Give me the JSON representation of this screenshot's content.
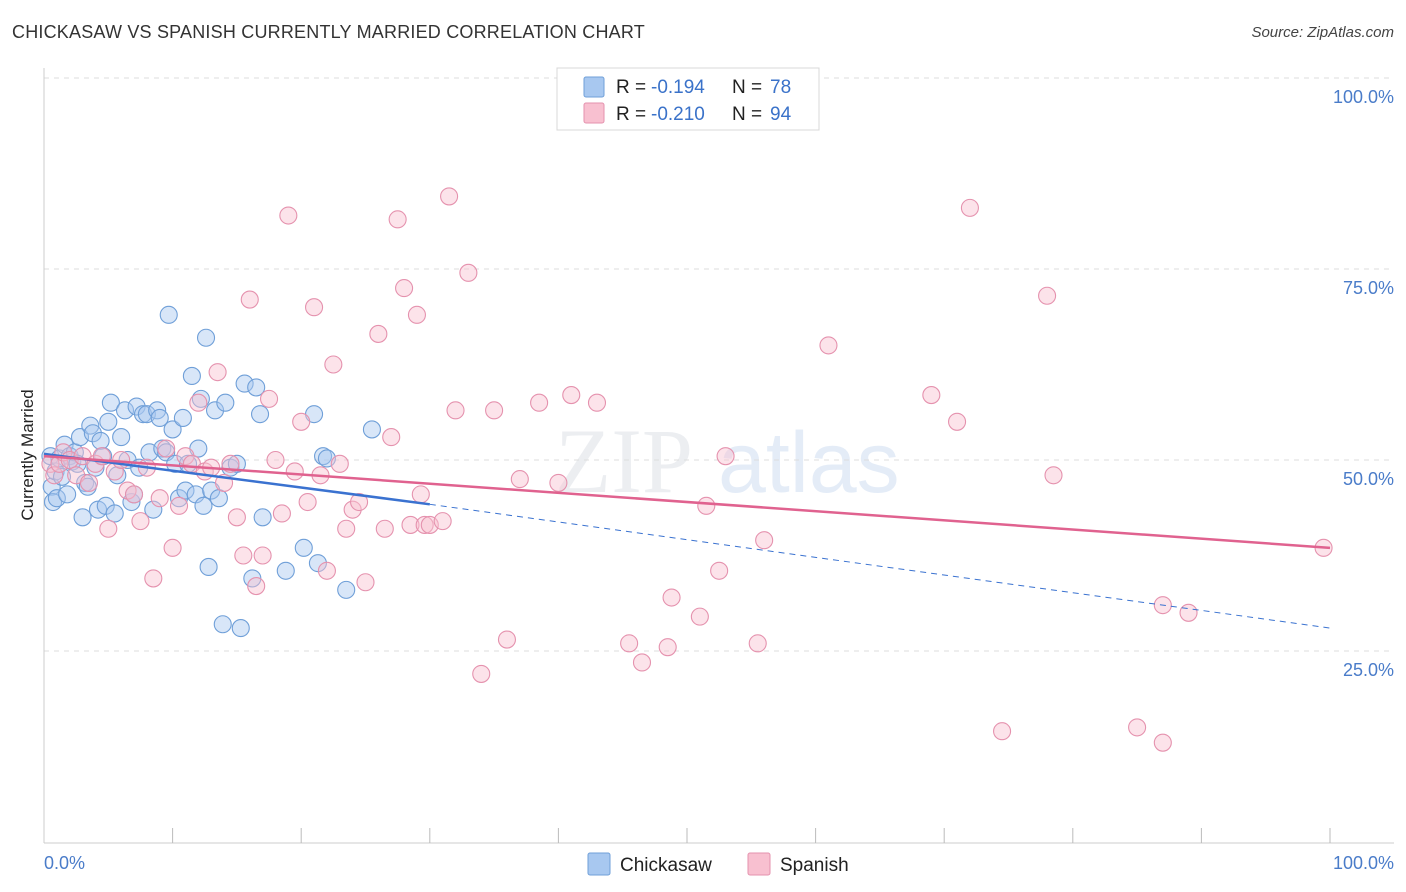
{
  "header": {
    "title": "CHICKASAW VS SPANISH CURRENTLY MARRIED CORRELATION CHART",
    "source": "Source: ZipAtlas.com"
  },
  "watermark": {
    "zip": "ZIP",
    "atlas": "atlas"
  },
  "legend_top": {
    "rows": [
      {
        "r_label": "R =",
        "r_value": "-0.194",
        "n_label": "N =",
        "n_value": "78",
        "color": "#a8c8f0",
        "stroke": "#6f9fd8"
      },
      {
        "r_label": "R =",
        "r_value": "-0.210",
        "n_label": "N =",
        "n_value": "94",
        "color": "#f8c0d0",
        "stroke": "#e592ae"
      }
    ]
  },
  "legend_bottom": {
    "items": [
      {
        "label": "Chickasaw",
        "color": "#a8c8f0",
        "stroke": "#6f9fd8"
      },
      {
        "label": "Spanish",
        "color": "#f8c0d0",
        "stroke": "#e592ae"
      }
    ]
  },
  "chart_data": {
    "type": "scatter",
    "title": "CHICKASAW VS SPANISH CURRENTLY MARRIED CORRELATION CHART",
    "xlabel": "",
    "ylabel": "Currently Married",
    "xlim": [
      0,
      100
    ],
    "ylim": [
      0,
      102
    ],
    "x_tick_labels": {
      "left": "0.0%",
      "right": "100.0%"
    },
    "y_ticks": [
      {
        "value": 25,
        "label": "25.0%"
      },
      {
        "value": 50,
        "label": "50.0%"
      },
      {
        "value": 75,
        "label": "75.0%"
      },
      {
        "value": 100,
        "label": "100.0%"
      }
    ],
    "grid": true,
    "series": [
      {
        "name": "Chickasaw",
        "color": "#a8c8f0",
        "stroke": "#6f9fd8",
        "line_color": "#3a72d0",
        "r": -0.194,
        "n": 78,
        "trend": {
          "x0": 0,
          "y0": 50.8,
          "x1": 30,
          "y1": 44.2,
          "dash_to_x": 100,
          "dash_to_y": 28.0
        },
        "points": [
          [
            0.5,
            50.5
          ],
          [
            0.6,
            46.5
          ],
          [
            0.7,
            44.5
          ],
          [
            0.9,
            48.5
          ],
          [
            1.0,
            45.0
          ],
          [
            1.2,
            50.2
          ],
          [
            1.4,
            47.8
          ],
          [
            1.6,
            52.0
          ],
          [
            1.8,
            45.5
          ],
          [
            2.0,
            50.5
          ],
          [
            2.2,
            49.8
          ],
          [
            2.4,
            51.0
          ],
          [
            2.6,
            49.5
          ],
          [
            2.8,
            53.0
          ],
          [
            3.0,
            42.5
          ],
          [
            3.2,
            47.0
          ],
          [
            3.4,
            46.5
          ],
          [
            3.6,
            54.5
          ],
          [
            3.8,
            53.5
          ],
          [
            4.0,
            49.0
          ],
          [
            4.2,
            43.5
          ],
          [
            4.4,
            52.5
          ],
          [
            4.6,
            50.5
          ],
          [
            4.8,
            44.0
          ],
          [
            5.0,
            55.0
          ],
          [
            5.2,
            57.5
          ],
          [
            5.5,
            43.0
          ],
          [
            5.7,
            48.0
          ],
          [
            6.0,
            53.0
          ],
          [
            6.3,
            56.5
          ],
          [
            6.5,
            50.0
          ],
          [
            6.8,
            44.5
          ],
          [
            7.0,
            45.5
          ],
          [
            7.2,
            57.0
          ],
          [
            7.4,
            49.0
          ],
          [
            7.7,
            56.0
          ],
          [
            8.0,
            56.0
          ],
          [
            8.2,
            51.0
          ],
          [
            8.5,
            43.5
          ],
          [
            8.8,
            56.5
          ],
          [
            9.0,
            55.5
          ],
          [
            9.2,
            51.5
          ],
          [
            9.5,
            51.0
          ],
          [
            9.7,
            69.0
          ],
          [
            10.0,
            54.0
          ],
          [
            10.2,
            49.5
          ],
          [
            10.5,
            45.0
          ],
          [
            10.8,
            55.5
          ],
          [
            11.0,
            46.0
          ],
          [
            11.2,
            49.5
          ],
          [
            11.5,
            61.0
          ],
          [
            11.8,
            45.5
          ],
          [
            12.0,
            51.5
          ],
          [
            12.2,
            58.0
          ],
          [
            12.4,
            44.0
          ],
          [
            12.6,
            66.0
          ],
          [
            12.8,
            36.0
          ],
          [
            13.0,
            46.0
          ],
          [
            13.3,
            56.5
          ],
          [
            13.6,
            45.0
          ],
          [
            13.9,
            28.5
          ],
          [
            14.1,
            57.5
          ],
          [
            14.5,
            49.0
          ],
          [
            15.0,
            49.5
          ],
          [
            15.3,
            28.0
          ],
          [
            15.6,
            60.0
          ],
          [
            16.2,
            34.5
          ],
          [
            16.5,
            59.5
          ],
          [
            16.8,
            56.0
          ],
          [
            17.0,
            42.5
          ],
          [
            18.8,
            35.5
          ],
          [
            20.2,
            38.5
          ],
          [
            21.0,
            56.0
          ],
          [
            21.3,
            36.5
          ],
          [
            21.7,
            50.5
          ],
          [
            23.5,
            33.0
          ],
          [
            25.5,
            54.0
          ],
          [
            22.0,
            50.2
          ]
        ]
      },
      {
        "name": "Spanish",
        "color": "#f8c0d0",
        "stroke": "#e592ae",
        "line_color": "#e0628f",
        "r": -0.21,
        "n": 94,
        "trend": {
          "x0": 0,
          "y0": 50.5,
          "x1": 100,
          "y1": 38.5
        },
        "points": [
          [
            0.5,
            49.5
          ],
          [
            0.8,
            48.0
          ],
          [
            1.2,
            49.5
          ],
          [
            1.5,
            51.0
          ],
          [
            2.0,
            50.0
          ],
          [
            2.5,
            48.0
          ],
          [
            3.0,
            50.5
          ],
          [
            3.5,
            47.0
          ],
          [
            4.0,
            49.5
          ],
          [
            4.5,
            50.5
          ],
          [
            5.0,
            41.0
          ],
          [
            5.5,
            48.5
          ],
          [
            6.0,
            50.0
          ],
          [
            6.5,
            46.0
          ],
          [
            7.0,
            45.5
          ],
          [
            7.5,
            42.0
          ],
          [
            8.0,
            49.0
          ],
          [
            8.5,
            34.5
          ],
          [
            9.0,
            45.0
          ],
          [
            9.5,
            51.5
          ],
          [
            10.0,
            38.5
          ],
          [
            10.5,
            44.0
          ],
          [
            11.0,
            50.5
          ],
          [
            11.5,
            49.5
          ],
          [
            12.0,
            57.5
          ],
          [
            12.5,
            48.5
          ],
          [
            13.0,
            49.0
          ],
          [
            13.5,
            61.5
          ],
          [
            14.0,
            47.0
          ],
          [
            14.5,
            49.5
          ],
          [
            15.0,
            42.5
          ],
          [
            15.5,
            37.5
          ],
          [
            16.0,
            71.0
          ],
          [
            16.5,
            33.5
          ],
          [
            17.0,
            37.5
          ],
          [
            17.5,
            58.0
          ],
          [
            18.0,
            50.0
          ],
          [
            18.5,
            43.0
          ],
          [
            19.0,
            82.0
          ],
          [
            19.5,
            48.5
          ],
          [
            20.0,
            55.0
          ],
          [
            20.5,
            44.5
          ],
          [
            21.0,
            70.0
          ],
          [
            21.5,
            48.0
          ],
          [
            22.0,
            35.5
          ],
          [
            22.5,
            62.5
          ],
          [
            23.0,
            49.5
          ],
          [
            23.5,
            41.0
          ],
          [
            24.0,
            43.5
          ],
          [
            24.5,
            44.5
          ],
          [
            25.0,
            34.0
          ],
          [
            26.0,
            66.5
          ],
          [
            26.5,
            41.0
          ],
          [
            27.0,
            53.0
          ],
          [
            27.5,
            81.5
          ],
          [
            28.0,
            72.5
          ],
          [
            28.5,
            41.5
          ],
          [
            29.0,
            69.0
          ],
          [
            29.3,
            45.5
          ],
          [
            29.6,
            41.5
          ],
          [
            30.0,
            41.5
          ],
          [
            31.0,
            42.0
          ],
          [
            31.5,
            84.5
          ],
          [
            32.0,
            56.5
          ],
          [
            33.0,
            74.5
          ],
          [
            34.0,
            22.0
          ],
          [
            35.0,
            56.5
          ],
          [
            36.0,
            26.5
          ],
          [
            37.0,
            47.5
          ],
          [
            38.5,
            57.5
          ],
          [
            40.0,
            47.0
          ],
          [
            41.0,
            58.5
          ],
          [
            43.0,
            57.5
          ],
          [
            45.5,
            26.0
          ],
          [
            46.5,
            23.5
          ],
          [
            48.5,
            25.5
          ],
          [
            48.8,
            32.0
          ],
          [
            51.0,
            29.5
          ],
          [
            51.5,
            44.0
          ],
          [
            52.5,
            35.5
          ],
          [
            53.0,
            50.5
          ],
          [
            55.5,
            26.0
          ],
          [
            56.0,
            39.5
          ],
          [
            61.0,
            65.0
          ],
          [
            69.0,
            58.5
          ],
          [
            71.0,
            55.0
          ],
          [
            72.0,
            83.0
          ],
          [
            74.5,
            14.5
          ],
          [
            78.0,
            71.5
          ],
          [
            78.5,
            48.0
          ],
          [
            85.0,
            15.0
          ],
          [
            87.0,
            31.0
          ],
          [
            89.0,
            30.0
          ],
          [
            87.0,
            13.0
          ],
          [
            99.5,
            38.5
          ]
        ]
      }
    ]
  }
}
